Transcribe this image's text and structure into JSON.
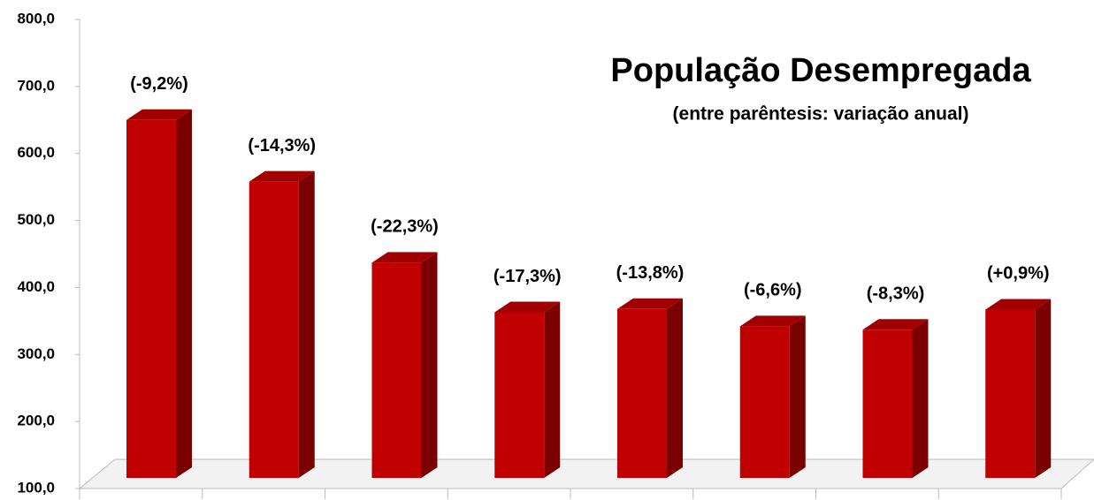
{
  "chart_data": {
    "type": "bar3d",
    "title": "População Desempregada",
    "subtitle": "(entre parêntesis: variação anual)",
    "categories": [
      null,
      null,
      null,
      null,
      null,
      null,
      null,
      null
    ],
    "values": [
      650,
      558,
      437,
      363,
      368,
      342,
      337,
      367
    ],
    "annotations": [
      "(-9,2%)",
      "(-14,3%)",
      "(-22,3%)",
      "(-17,3%)",
      "(-13,8%)",
      "(-6,6%)",
      "(-8,3%)",
      "(+0,9%)"
    ],
    "color": "#c00000",
    "ylim": [
      100,
      800
    ],
    "yticks": [
      {
        "value": 100,
        "label": "100,0"
      },
      {
        "value": 200,
        "label": "200,0"
      },
      {
        "value": 300,
        "label": "300,0"
      },
      {
        "value": 400,
        "label": "400,0"
      },
      {
        "value": 500,
        "label": "500,0"
      },
      {
        "value": 600,
        "label": "600,0"
      },
      {
        "value": 700,
        "label": "700,0"
      },
      {
        "value": 800,
        "label": "800,0"
      }
    ],
    "grid": false
  }
}
